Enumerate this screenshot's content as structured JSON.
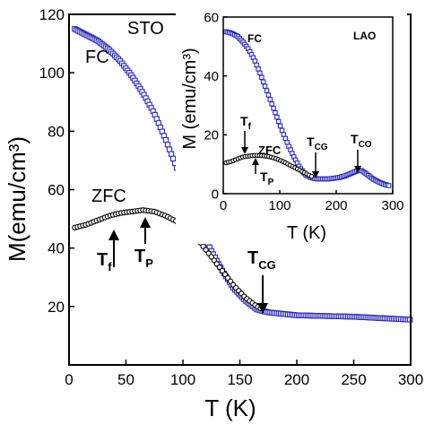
{
  "chart_data": [
    {
      "type": "scatter",
      "xlabel": "T (K)",
      "ylabel": "M(emu/cm³)",
      "xlim": [
        0,
        300
      ],
      "ylim": [
        0,
        120
      ],
      "xticks": [
        0,
        50,
        100,
        150,
        200,
        250,
        300
      ],
      "yticks": [
        20,
        40,
        60,
        80,
        100,
        120
      ],
      "grid": false,
      "legend": "none",
      "annotations": {
        "sample": "STO",
        "fc_label": "FC",
        "zfc_label": "ZFC",
        "tf_main": "T",
        "tf_sub": "f",
        "tp_main": "T",
        "tp_sub": "P",
        "tcg_main": "T",
        "tcg_sub": "CG"
      },
      "series": [
        {
          "label": "FC",
          "marker": "square",
          "color": "#2b2bb5",
          "x": [
            5,
            15,
            25,
            35,
            45,
            55,
            65,
            75,
            85,
            95,
            105,
            115,
            125,
            135,
            145,
            155,
            165,
            175,
            200,
            250,
            300
          ],
          "y": [
            115,
            113,
            111,
            108,
            104,
            99,
            93,
            86,
            77,
            67,
            56,
            47,
            39,
            32,
            26,
            22,
            19,
            18,
            17,
            16.5,
            15.5
          ]
        },
        {
          "label": "ZFC",
          "marker": "circle",
          "color": "#000000",
          "x": [
            5,
            15,
            25,
            35,
            45,
            55,
            65,
            75,
            85,
            95,
            105,
            115,
            125,
            135,
            145,
            155,
            165,
            170
          ],
          "y": [
            47,
            48,
            49.5,
            51,
            52,
            52.5,
            53,
            52.5,
            51,
            49,
            46,
            42,
            37,
            32,
            27,
            23,
            20,
            19
          ]
        }
      ]
    },
    {
      "type": "scatter",
      "xlabel": "T (K)",
      "ylabel": "M (emu/cm³)",
      "xlim": [
        0,
        300
      ],
      "ylim": [
        0,
        60
      ],
      "xticks": [
        0,
        100,
        200,
        300
      ],
      "yticks": [
        0,
        20,
        40,
        60
      ],
      "grid": false,
      "legend": "none",
      "annotations": {
        "sample": "LAO",
        "fc_label": "FC",
        "zfc_label": "ZFC",
        "tf_main": "T",
        "tf_sub": "f",
        "tp_main": "T",
        "tp_sub": "P",
        "tcg_main": "T",
        "tcg_sub": "CG",
        "tco_main": "T",
        "tco_sub": "CO"
      },
      "series": [
        {
          "label": "FC",
          "marker": "square",
          "color": "#2b2bb5",
          "x": [
            5,
            15,
            25,
            35,
            45,
            55,
            65,
            75,
            85,
            95,
            105,
            115,
            125,
            135,
            145,
            155,
            165,
            175,
            185,
            195,
            205,
            215,
            225,
            235,
            240,
            245,
            255,
            265,
            275,
            285,
            295
          ],
          "y": [
            55,
            54.5,
            53.5,
            51.5,
            49,
            45.5,
            41,
            36,
            31,
            26,
            21,
            16.5,
            12.5,
            9,
            6.5,
            5.5,
            5,
            5,
            5,
            5.2,
            5.5,
            6,
            6.8,
            7.6,
            8,
            7.8,
            6.5,
            5,
            4,
            3.2,
            2.6
          ]
        },
        {
          "label": "ZFC",
          "marker": "circle",
          "color": "#000000",
          "x": [
            5,
            15,
            25,
            35,
            45,
            55,
            65,
            75,
            85,
            95,
            105,
            115,
            125,
            135,
            145,
            155,
            160
          ],
          "y": [
            10.5,
            11,
            11.8,
            12.5,
            12.8,
            13,
            13,
            12.8,
            12.4,
            11.8,
            11,
            10,
            9,
            8,
            7,
            6,
            5.5
          ]
        }
      ]
    }
  ]
}
